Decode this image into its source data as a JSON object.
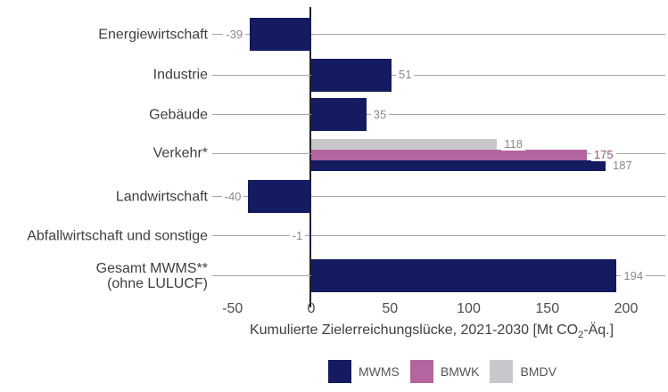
{
  "colors": {
    "mwms": "#141b60",
    "bmwk": "#b4649e",
    "bmdv": "#c8c8cc",
    "value_label": "#8a8a8a",
    "bmwk_value_label": "#9c4f72",
    "gridline": "#a6a6a6",
    "axis_line": "#222222"
  },
  "chart_data": {
    "type": "bar",
    "orientation": "horizontal",
    "title": "",
    "xlabel_parts": {
      "pre": "Kumulierte Zielerreichungslücke, 2021-2030 [Mt CO",
      "sub": "2",
      "post": "-Äq.]"
    },
    "xlim": [
      -62,
      228
    ],
    "grid": "per-row horizontal leader lines",
    "legend_position": "bottom",
    "x_ticks": [
      {
        "value": -50,
        "label": "-50"
      },
      {
        "value": 0,
        "label": "0"
      },
      {
        "value": 50,
        "label": "50"
      },
      {
        "value": 100,
        "label": "100"
      },
      {
        "value": 150,
        "label": "150"
      },
      {
        "value": 200,
        "label": "200"
      }
    ],
    "series_legend": [
      {
        "name": "MWMS",
        "color_key": "mwms"
      },
      {
        "name": "BMWK",
        "color_key": "bmwk"
      },
      {
        "name": "BMDV",
        "color_key": "bmdv"
      }
    ],
    "rows": [
      {
        "label": "Energiewirtschaft",
        "label_line2": "",
        "bars": [
          {
            "series": "MWMS",
            "color_key": "mwms",
            "value": -39,
            "value_label": "-39"
          }
        ]
      },
      {
        "label": "Industrie",
        "label_line2": "",
        "bars": [
          {
            "series": "MWMS",
            "color_key": "mwms",
            "value": 51,
            "value_label": "51"
          }
        ]
      },
      {
        "label": "Gebäude",
        "label_line2": "",
        "bars": [
          {
            "series": "MWMS",
            "color_key": "mwms",
            "value": 35,
            "value_label": "35"
          }
        ]
      },
      {
        "label": "Verkehr*",
        "label_line2": "",
        "bars": [
          {
            "series": "BMDV",
            "color_key": "bmdv",
            "value": 118,
            "value_label": "118"
          },
          {
            "series": "BMWK",
            "color_key": "bmwk",
            "value": 175,
            "value_label": "175",
            "value_label_color_key": "bmwk_value_label"
          },
          {
            "series": "MWMS",
            "color_key": "mwms",
            "value": 187,
            "value_label": "187"
          }
        ]
      },
      {
        "label": "Landwirtschaft",
        "label_line2": "",
        "bars": [
          {
            "series": "MWMS",
            "color_key": "mwms",
            "value": -40,
            "value_label": "-40"
          }
        ]
      },
      {
        "label": "Abfallwirtschaft und sonstige",
        "label_line2": "",
        "bars": [
          {
            "series": "MWMS",
            "color_key": "mwms",
            "value": -1,
            "value_label": "-1"
          }
        ]
      },
      {
        "label": "Gesamt MWMS**",
        "label_line2": "(ohne LULUCF)",
        "bars": [
          {
            "series": "MWMS",
            "color_key": "mwms",
            "value": 194,
            "value_label": "194"
          }
        ]
      }
    ]
  }
}
